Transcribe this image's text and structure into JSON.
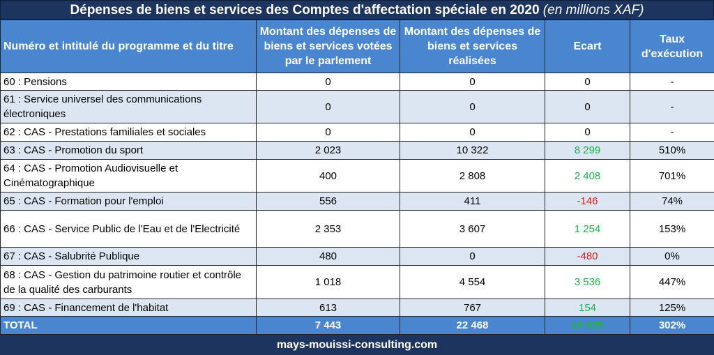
{
  "title": {
    "main": "Dépenses de biens et services des Comptes d'affectation spéciale en 2020",
    "unit": "(en millions XAF)"
  },
  "headers": [
    "Numéro et intitulé du programme et du titre",
    "Montant des dépenses de biens et services votées par le parlement",
    "Montant des dépenses de biens et services réalisées",
    "Ecart",
    "Taux d'exécution"
  ],
  "rows": [
    {
      "label": "60 : Pensions",
      "votees": "0",
      "realisees": "0",
      "ecart": "0",
      "taux": "-",
      "sign": ""
    },
    {
      "label": "61 : Service universel des communications électroniques",
      "votees": "0",
      "realisees": "0",
      "ecart": "0",
      "taux": "-",
      "sign": ""
    },
    {
      "label": "62 : CAS - Prestations familiales et sociales",
      "votees": "0",
      "realisees": "0",
      "ecart": "0",
      "taux": "-",
      "sign": ""
    },
    {
      "label": "63 : CAS - Promotion du sport",
      "votees": "2 023",
      "realisees": "10 322",
      "ecart": "8 299",
      "taux": "510%",
      "sign": "pos"
    },
    {
      "label": "64 : CAS - Promotion Audiovisuelle et Cinématographique",
      "votees": "400",
      "realisees": "2 808",
      "ecart": "2 408",
      "taux": "701%",
      "sign": "pos"
    },
    {
      "label": "65 : CAS - Formation pour l'emploi",
      "votees": "556",
      "realisees": "411",
      "ecart": "-146",
      "taux": "74%",
      "sign": "neg"
    },
    {
      "label": "66 : CAS - Service Public de l'Eau et de l'Electricité",
      "votees": "2 353",
      "realisees": "3 607",
      "ecart": "1 254",
      "taux": "153%",
      "sign": "pos"
    },
    {
      "label": "67 : CAS - Salubrité Publique",
      "votees": "480",
      "realisees": "0",
      "ecart": "-480",
      "taux": "0%",
      "sign": "neg"
    },
    {
      "label": "68 : CAS - Gestion du patrimoine routier et contrôle de la qualité des carburants",
      "votees": "1 018",
      "realisees": "4 554",
      "ecart": "3 536",
      "taux": "447%",
      "sign": "pos"
    },
    {
      "label": "69 : CAS - Financement de l'habitat",
      "votees": "613",
      "realisees": "767",
      "ecart": "154",
      "taux": "125%",
      "sign": "pos"
    }
  ],
  "total": {
    "label": "TOTAL",
    "votees": "7 443",
    "realisees": "22 468",
    "ecart": "15 025",
    "taux": "302%"
  },
  "footer": "mays-mouissi-consulting.com",
  "colors": {
    "navy": "#1d355e",
    "header_blue": "#4a86d0",
    "alt_row": "#dce6f2",
    "positive": "#22b04c",
    "negative": "#e02020"
  }
}
